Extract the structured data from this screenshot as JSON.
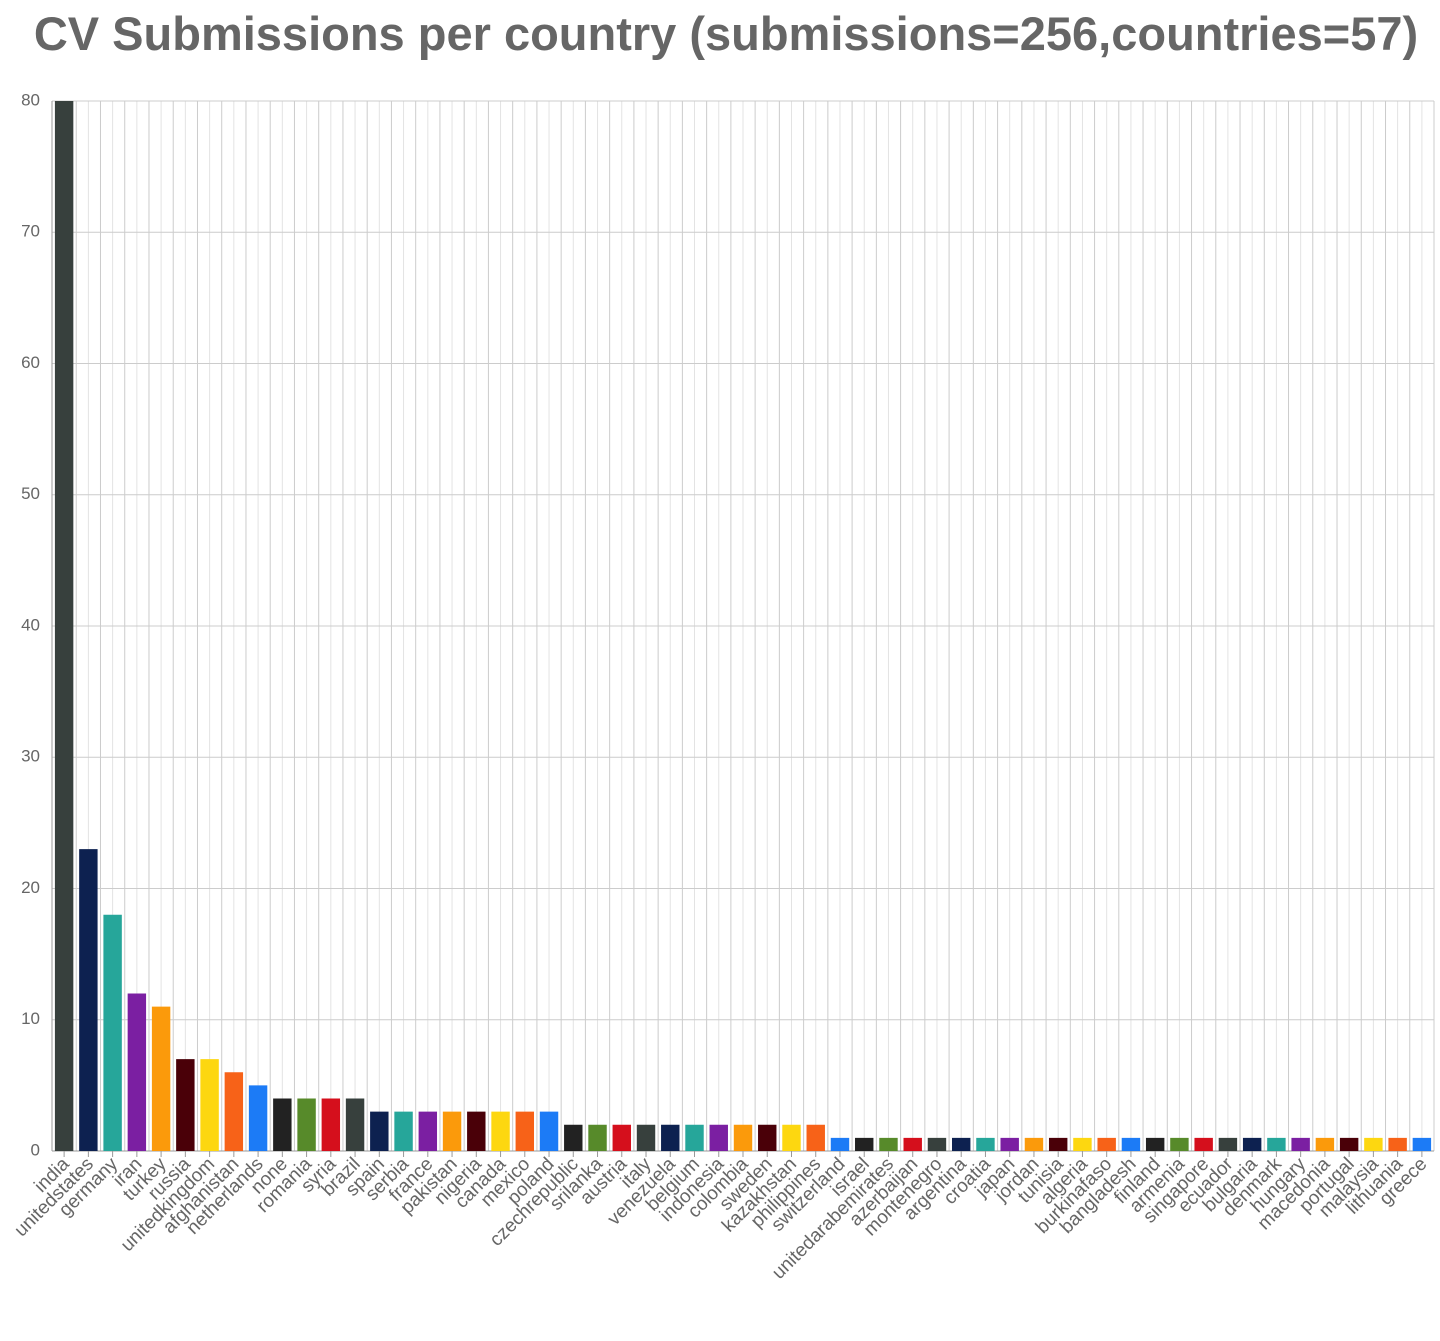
{
  "chart_data": {
    "type": "bar",
    "title": "CV Submissions per country (submissions=256,countries=57)",
    "categories": [
      "india",
      "unitedstates",
      "germany",
      "iran",
      "turkey",
      "russia",
      "unitedkingdom",
      "afghanistan",
      "netherlands",
      "none",
      "romania",
      "syria",
      "brazil",
      "spain",
      "serbia",
      "france",
      "pakistan",
      "nigeria",
      "canada",
      "mexico",
      "poland",
      "czechrepublic",
      "srilanka",
      "austria",
      "italy",
      "venezuela",
      "belgium",
      "indonesia",
      "colombia",
      "sweden",
      "kazakhstan",
      "philippines",
      "switzerland",
      "israel",
      "unitedarabemirates",
      "azerbaijan",
      "montenegro",
      "argentina",
      "croatia",
      "japan",
      "jordan",
      "tunisia",
      "algeria",
      "burkinafaso",
      "bangladesh",
      "finland",
      "armenia",
      "singapore",
      "ecuador",
      "bulgaria",
      "denmark",
      "hungary",
      "macedonia",
      "portugal",
      "malaysia",
      "lithuania",
      "greece"
    ],
    "values": [
      80,
      23,
      18,
      12,
      11,
      7,
      7,
      6,
      5,
      4,
      4,
      4,
      4,
      3,
      3,
      3,
      3,
      3,
      3,
      3,
      3,
      2,
      2,
      2,
      2,
      2,
      2,
      2,
      2,
      2,
      2,
      2,
      1,
      1,
      1,
      1,
      1,
      1,
      1,
      1,
      1,
      1,
      1,
      1,
      1,
      1,
      1,
      1,
      1,
      1,
      1,
      1,
      1,
      1,
      1,
      1,
      1
    ],
    "palette": [
      "#37403d",
      "#0d2150",
      "#26a69a",
      "#7b1fa2",
      "#fb9a0b",
      "#4a0008",
      "#fdd710",
      "#f76218",
      "#1c7bf6",
      "#222222",
      "#578a2a",
      "#d50f1c"
    ],
    "ylim": [
      0,
      80
    ],
    "yticks": [
      0,
      10,
      20,
      30,
      40,
      50,
      60,
      70,
      80
    ],
    "grid": true
  }
}
